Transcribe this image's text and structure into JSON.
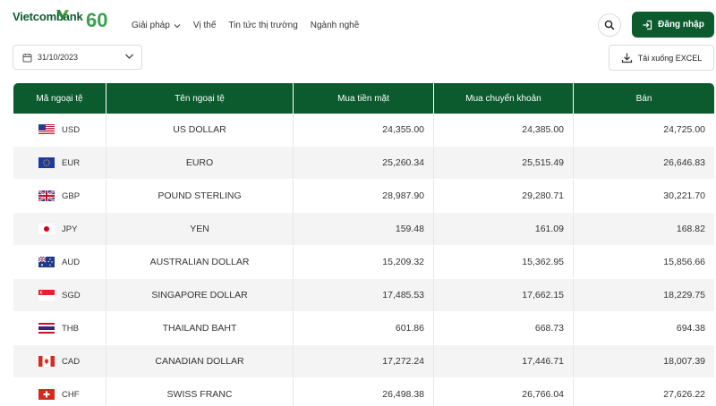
{
  "brand": {
    "name": "Vietcombank",
    "anniversary": "60",
    "primary_color": "#0c5b2f"
  },
  "nav": {
    "items": [
      {
        "label": "Giải pháp",
        "has_dropdown": true
      },
      {
        "label": "Vị thế",
        "has_dropdown": false
      },
      {
        "label": "Tin tức thị trường",
        "has_dropdown": false
      },
      {
        "label": "Ngành nghề",
        "has_dropdown": false
      }
    ]
  },
  "header": {
    "search_icon": "search-icon",
    "login_label": "Đăng nhập",
    "login_icon": "login-icon"
  },
  "toolbar": {
    "date_value": "31/10/2023",
    "download_label": "Tải xuống EXCEL",
    "download_icon": "download-icon"
  },
  "table": {
    "headers": [
      "Mã ngoại tệ",
      "Tên ngoại tệ",
      "Mua tiền mặt",
      "Mua chuyển khoản",
      "Bán"
    ],
    "rows": [
      {
        "code": "USD",
        "flag": "us",
        "name": "US DOLLAR",
        "cash_buy": "24,355.00",
        "transfer_buy": "24,385.00",
        "sell": "24,725.00"
      },
      {
        "code": "EUR",
        "flag": "eu",
        "name": "EURO",
        "cash_buy": "25,260.34",
        "transfer_buy": "25,515.49",
        "sell": "26,646.83"
      },
      {
        "code": "GBP",
        "flag": "gb",
        "name": "POUND STERLING",
        "cash_buy": "28,987.90",
        "transfer_buy": "29,280.71",
        "sell": "30,221.70"
      },
      {
        "code": "JPY",
        "flag": "jp",
        "name": "YEN",
        "cash_buy": "159.48",
        "transfer_buy": "161.09",
        "sell": "168.82"
      },
      {
        "code": "AUD",
        "flag": "au",
        "name": "AUSTRALIAN DOLLAR",
        "cash_buy": "15,209.32",
        "transfer_buy": "15,362.95",
        "sell": "15,856.66"
      },
      {
        "code": "SGD",
        "flag": "sg",
        "name": "SINGAPORE DOLLAR",
        "cash_buy": "17,485.53",
        "transfer_buy": "17,662.15",
        "sell": "18,229.75"
      },
      {
        "code": "THB",
        "flag": "th",
        "name": "THAILAND BAHT",
        "cash_buy": "601.86",
        "transfer_buy": "668.73",
        "sell": "694.38"
      },
      {
        "code": "CAD",
        "flag": "ca",
        "name": "CANADIAN DOLLAR",
        "cash_buy": "17,272.24",
        "transfer_buy": "17,446.71",
        "sell": "18,007.39"
      },
      {
        "code": "CHF",
        "flag": "ch",
        "name": "SWISS FRANC",
        "cash_buy": "26,498.38",
        "transfer_buy": "26,766.04",
        "sell": "27,626.22"
      }
    ]
  }
}
